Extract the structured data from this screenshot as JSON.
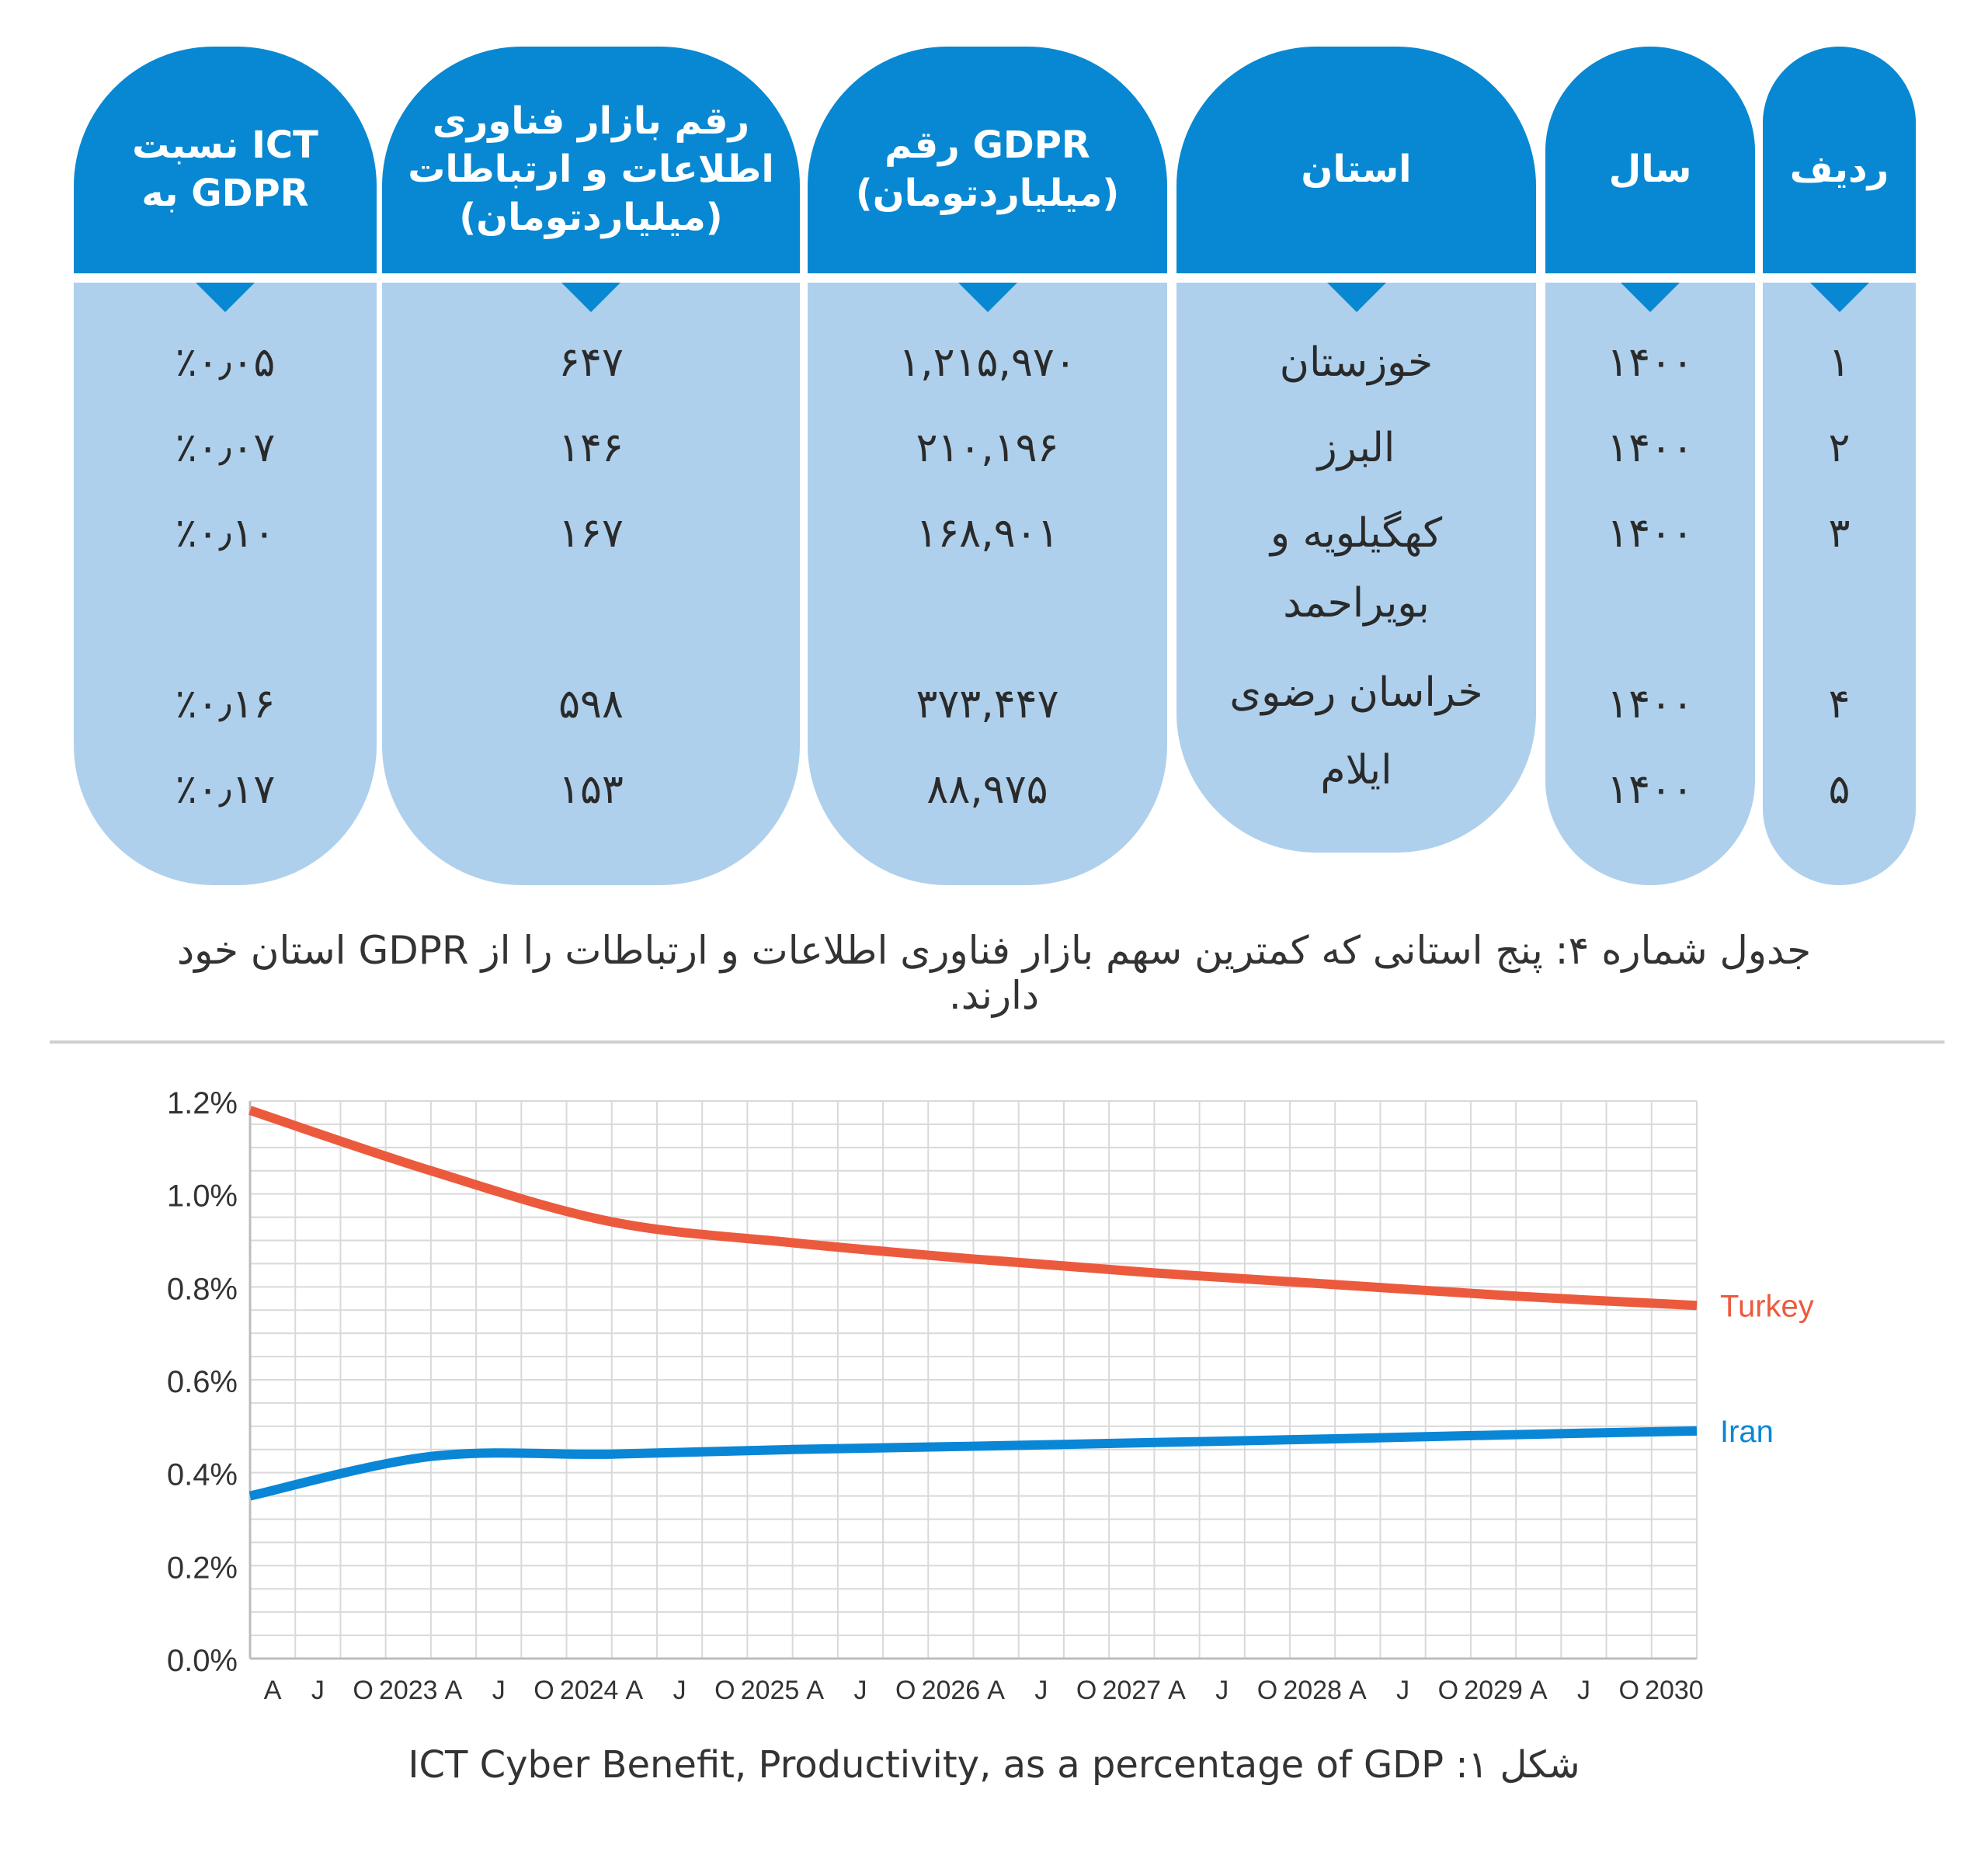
{
  "table": {
    "columns": [
      {
        "key": "ratio",
        "header": [
          "نسبت ICT",
          "به GDPR"
        ]
      },
      {
        "key": "ict_market",
        "header": [
          "رقم بازار فناوری",
          "اطلاعات و ارتباطات",
          "(میلیاردتومان)"
        ]
      },
      {
        "key": "gdpr",
        "header": [
          "رقم GDPR",
          "(میلیاردتومان)"
        ]
      },
      {
        "key": "province",
        "header": [
          "استان"
        ]
      },
      {
        "key": "year",
        "header": [
          "سال"
        ]
      },
      {
        "key": "row",
        "header": [
          "ردیف"
        ]
      }
    ],
    "rows": [
      {
        "row": "۱",
        "year": "۱۴۰۰",
        "province": [
          "خوزستان"
        ],
        "gdpr": "۱,۲۱۵,۹۷۰",
        "ict_market": "۶۴۷",
        "ratio": "٪۰٫۰۵"
      },
      {
        "row": "۲",
        "year": "۱۴۰۰",
        "province": [
          "البرز"
        ],
        "gdpr": "۲۱۰,۱۹۶",
        "ict_market": "۱۴۶",
        "ratio": "٪۰٫۰۷"
      },
      {
        "row": "۳",
        "year": "۱۴۰۰",
        "province": [
          "کهگیلویه و",
          "بویراحمد"
        ],
        "gdpr": "۱۶۸,۹۰۱",
        "ict_market": "۱۶۷",
        "ratio": "٪۰٫۱۰"
      },
      {
        "row": "۴",
        "year": "۱۴۰۰",
        "province": [
          "خراسان رضوی"
        ],
        "gdpr": "۳۷۳,۴۴۷",
        "ict_market": "۵۹۸",
        "ratio": "٪۰٫۱۶"
      },
      {
        "row": "۵",
        "year": "۱۴۰۰",
        "province": [
          "ایلام"
        ],
        "gdpr": "۸۸,۹۷۵",
        "ict_market": "۱۵۳",
        "ratio": "٪۰٫۱۷"
      }
    ],
    "caption": "جدول شماره ۴: پنج استانی که کمترین سهم بازار فناوری اطلاعات و ارتباطات را از GDPR استان خود دارند."
  },
  "colors": {
    "header_blue": "#0888d2",
    "body_light_blue": "#aed0ec",
    "turkey": "#ec5a3e",
    "iran": "#0a86d6",
    "grid": "#d9d9d9"
  },
  "chart_data": {
    "type": "line",
    "title": "",
    "xlabel": "",
    "ylabel": "",
    "x_tick_labels": [
      "A",
      "J",
      "O",
      "2023",
      "A",
      "J",
      "O",
      "2024",
      "A",
      "J",
      "O",
      "2025",
      "A",
      "J",
      "O",
      "2026",
      "A",
      "J",
      "O",
      "2027",
      "A",
      "J",
      "O",
      "2028",
      "A",
      "J",
      "O",
      "2029",
      "A",
      "J",
      "O",
      "2030"
    ],
    "x_range": [
      2022,
      2030
    ],
    "y_ticks": [
      "0.0%",
      "0.2%",
      "0.4%",
      "0.6%",
      "0.8%",
      "1.0%",
      "1.2%"
    ],
    "y_tick_values": [
      0.0,
      0.2,
      0.4,
      0.6,
      0.8,
      1.0,
      1.2
    ],
    "ylim": [
      0,
      1.2
    ],
    "grid": true,
    "legend_placement": "right, at line ends",
    "series": [
      {
        "name": "Turkey",
        "x": [
          2022,
          2023,
          2024,
          2025,
          2026,
          2027,
          2028,
          2029,
          2030
        ],
        "y": [
          1.18,
          1.05,
          0.94,
          0.895,
          0.86,
          0.83,
          0.805,
          0.78,
          0.76
        ]
      },
      {
        "name": "Iran",
        "x": [
          2022,
          2023,
          2024,
          2025,
          2026,
          2027,
          2028,
          2029,
          2030
        ],
        "y": [
          0.35,
          0.435,
          0.44,
          0.45,
          0.457,
          0.465,
          0.473,
          0.482,
          0.49
        ]
      }
    ],
    "caption": "شکل ۱: ICT Cyber Benefit, Productivity, as a percentage of GDP"
  }
}
